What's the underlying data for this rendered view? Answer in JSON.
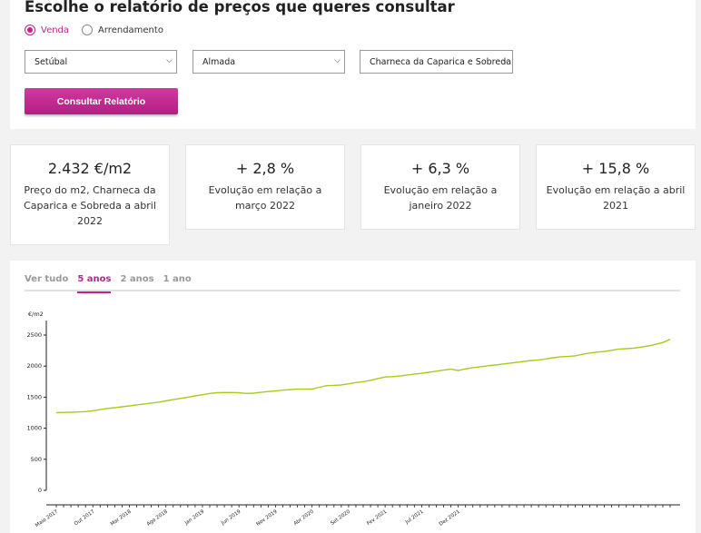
{
  "form": {
    "title": "Escolhe o relatório de preços que queres consultar",
    "radios": [
      {
        "label": "Venda",
        "checked": true
      },
      {
        "label": "Arrendamento",
        "checked": false
      }
    ],
    "selects": {
      "district": "Setúbal",
      "municipality": "Almada",
      "parish": "Charneca da Caparica e Sobreda"
    },
    "submit_label": "Consultar Relatório"
  },
  "stats": [
    {
      "value": "2.432 €/m2",
      "label": "Preço do m2, Charneca da Caparica e Sobreda a abril 2022"
    },
    {
      "value": "+ 2,8 %",
      "label": "Evolução em relação a março 2022"
    },
    {
      "value": "+ 6,3 %",
      "label": "Evolução em relação a janeiro 2022"
    },
    {
      "value": "+ 15,8 %",
      "label": "Evolução em relação a abril 2021"
    }
  ],
  "chart": {
    "tabs": [
      {
        "label": "Ver tudo",
        "active": false
      },
      {
        "label": "5 anos",
        "active": true
      },
      {
        "label": "2 anos",
        "active": false
      },
      {
        "label": "1 ano",
        "active": false
      }
    ]
  },
  "colors": {
    "accent": "#c2218e",
    "line": "#a6cc1e"
  },
  "chart_data": {
    "type": "line",
    "ylabel": "€/m2",
    "ylim": [
      0,
      2500
    ],
    "yticks": [
      0,
      500,
      1000,
      1500,
      2000,
      2500
    ],
    "xticks": [
      "Maio 2017",
      "Out 2017",
      "Mar 2018",
      "Ago 2018",
      "Jan 2019",
      "Jun 2019",
      "Nov 2019",
      "Abr 2020",
      "Set 2020",
      "Fev 2021",
      "Jul 2021",
      "Dez 2021"
    ],
    "grid": false,
    "series": [
      {
        "values": [
          1250,
          1255,
          1258,
          1262,
          1268,
          1280,
          1300,
          1318,
          1330,
          1345,
          1360,
          1375,
          1390,
          1405,
          1420,
          1440,
          1460,
          1480,
          1500,
          1520,
          1540,
          1560,
          1572,
          1575,
          1574,
          1572,
          1560,
          1565,
          1578,
          1590,
          1600,
          1612,
          1622,
          1628,
          1628,
          1630,
          1660,
          1685,
          1690,
          1698,
          1715,
          1735,
          1750,
          1770,
          1800,
          1825,
          1830,
          1840,
          1855,
          1870,
          1885,
          1900,
          1918,
          1935,
          1950,
          1930,
          1955,
          1975,
          1990,
          2005,
          2018,
          2030,
          2045,
          2060,
          2075,
          2090,
          2100,
          2115,
          2135,
          2150,
          2155,
          2165,
          2190,
          2210,
          2225,
          2235,
          2255,
          2275,
          2280,
          2290,
          2305,
          2325,
          2350,
          2380,
          2432
        ]
      }
    ]
  }
}
